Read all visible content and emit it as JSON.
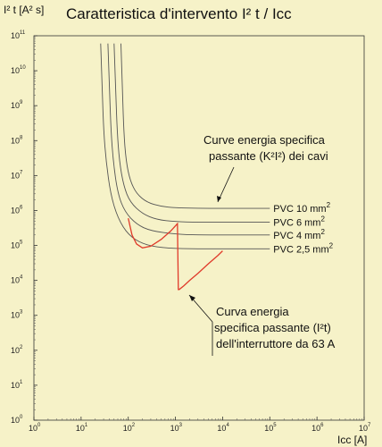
{
  "chart_data": {
    "type": "line",
    "title": "Caratteristica d'intervento I² t / Icc",
    "ylabel": "I² t [A² s]",
    "xlabel": "Icc [A]",
    "xscale": "log",
    "yscale": "log",
    "xlim": [
      1,
      10000000
    ],
    "ylim": [
      1,
      100000000000
    ],
    "grid": false,
    "x_ticks": [
      {
        "base": "10",
        "exp": "0"
      },
      {
        "base": "10",
        "exp": "1"
      },
      {
        "base": "10",
        "exp": "2"
      },
      {
        "base": "10",
        "exp": "3"
      },
      {
        "base": "10",
        "exp": "4"
      },
      {
        "base": "10",
        "exp": "5"
      },
      {
        "base": "10",
        "exp": "6"
      },
      {
        "base": "10",
        "exp": "7"
      }
    ],
    "y_ticks": [
      {
        "base": "10",
        "exp": "0"
      },
      {
        "base": "10",
        "exp": "1"
      },
      {
        "base": "10",
        "exp": "2"
      },
      {
        "base": "10",
        "exp": "3"
      },
      {
        "base": "10",
        "exp": "4"
      },
      {
        "base": "10",
        "exp": "5"
      },
      {
        "base": "10",
        "exp": "6"
      },
      {
        "base": "10",
        "exp": "7"
      },
      {
        "base": "10",
        "exp": "8"
      },
      {
        "base": "10",
        "exp": "9"
      },
      {
        "base": "10",
        "exp": "10"
      },
      {
        "base": "10",
        "exp": "11"
      }
    ],
    "series": [
      {
        "name": "PVC 10 mm²",
        "label": "PVC 10 mm",
        "label_sup": "2",
        "color": "#555555",
        "x": [
          70,
          75,
          80,
          90,
          110,
          150,
          250,
          500,
          1000,
          3000,
          10000,
          30000,
          100000
        ],
        "y": [
          60000000000,
          3000000000,
          200000000,
          25000000,
          7000000,
          3000000,
          1700000,
          1300000,
          1200000,
          1150000,
          1150000,
          1150000,
          1150000
        ]
      },
      {
        "name": "PVC 6 mm²",
        "label": "PVC 6 mm",
        "label_sup": "2",
        "color": "#555555",
        "x": [
          50,
          54,
          58,
          65,
          80,
          110,
          200,
          400,
          1000,
          3000,
          10000,
          30000,
          100000
        ],
        "y": [
          60000000000,
          3000000000,
          200000000,
          25000000,
          5000000,
          1700000,
          800000,
          550000,
          480000,
          460000,
          460000,
          460000,
          460000
        ]
      },
      {
        "name": "PVC 4 mm²",
        "label": "PVC 4 mm",
        "label_sup": "2",
        "color": "#555555",
        "x": [
          37,
          40,
          43,
          48,
          60,
          85,
          150,
          300,
          1000,
          3000,
          10000,
          30000,
          100000
        ],
        "y": [
          60000000000,
          3000000000,
          200000000,
          25000000,
          3000000,
          900000,
          400000,
          260000,
          210000,
          200000,
          200000,
          200000,
          200000
        ]
      },
      {
        "name": "PVC 2,5 mm²",
        "label": "PVC 2,5 mm",
        "label_sup": "2",
        "color": "#555555",
        "x": [
          26,
          28,
          30,
          34,
          42,
          60,
          100,
          200,
          500,
          2000,
          10000,
          30000,
          100000
        ],
        "y": [
          60000000000,
          3000000000,
          200000000,
          25000000,
          3000000,
          600000,
          200000,
          110000,
          85000,
          80000,
          80000,
          80000,
          80000
        ]
      },
      {
        "name": "Curva interruttore 63 A",
        "color": "#e03a2a",
        "x": [
          100,
          120,
          150,
          200,
          300,
          500,
          800,
          1100,
          1150,
          1200,
          1500,
          2000,
          3000,
          5000,
          8000,
          10000
        ],
        "y": [
          600000,
          200000,
          110000,
          85000,
          95000,
          150000,
          260000,
          420000,
          5500,
          5500,
          7000,
          10000,
          16000,
          30000,
          52000,
          70000
        ]
      }
    ],
    "annotations": [
      {
        "lines": [
          "Curve energia specifica",
          "passante (K²I²)  dei cavi"
        ],
        "x": 6000000,
        "y": 40000000
      },
      {
        "lines": [
          "Curva energia",
          "specifica passante (I²t)",
          "dell'interruttore da 63 A"
        ],
        "x": 3000,
        "y": 6000
      }
    ]
  }
}
